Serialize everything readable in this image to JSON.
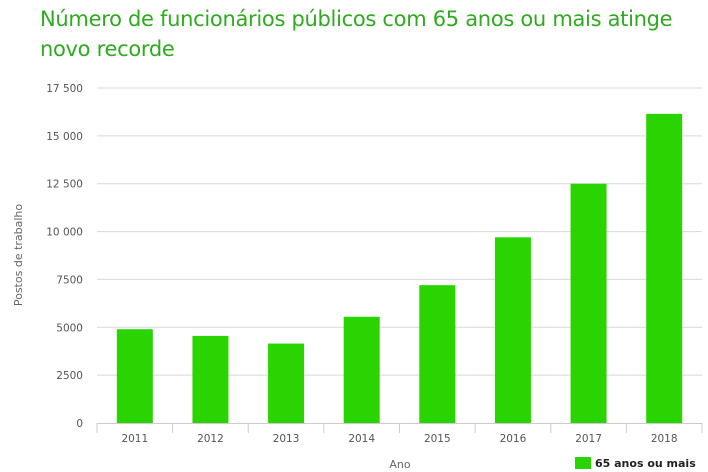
{
  "chart_data": {
    "type": "bar",
    "title": "Número de funcionários públicos com 65 anos ou mais atinge novo recorde",
    "categories": [
      "2011",
      "2012",
      "2013",
      "2014",
      "2015",
      "2016",
      "2017",
      "2018"
    ],
    "series": [
      {
        "name": "65 anos ou mais",
        "values": [
          4900,
          4550,
          4150,
          5550,
          7200,
          9700,
          12500,
          16150
        ],
        "color": "#2ad400"
      }
    ],
    "xlabel": "Ano",
    "ylabel": "Postos de trabalho",
    "ylim": [
      0,
      17500
    ],
    "yticks": [
      0,
      2500,
      5000,
      7500,
      10000,
      12500,
      15000,
      17500
    ],
    "ytick_labels": [
      "0",
      "2500",
      "5000",
      "7500",
      "10 000",
      "12 500",
      "15 000",
      "17 500"
    ],
    "grid": true,
    "legend": "bottom-right"
  }
}
